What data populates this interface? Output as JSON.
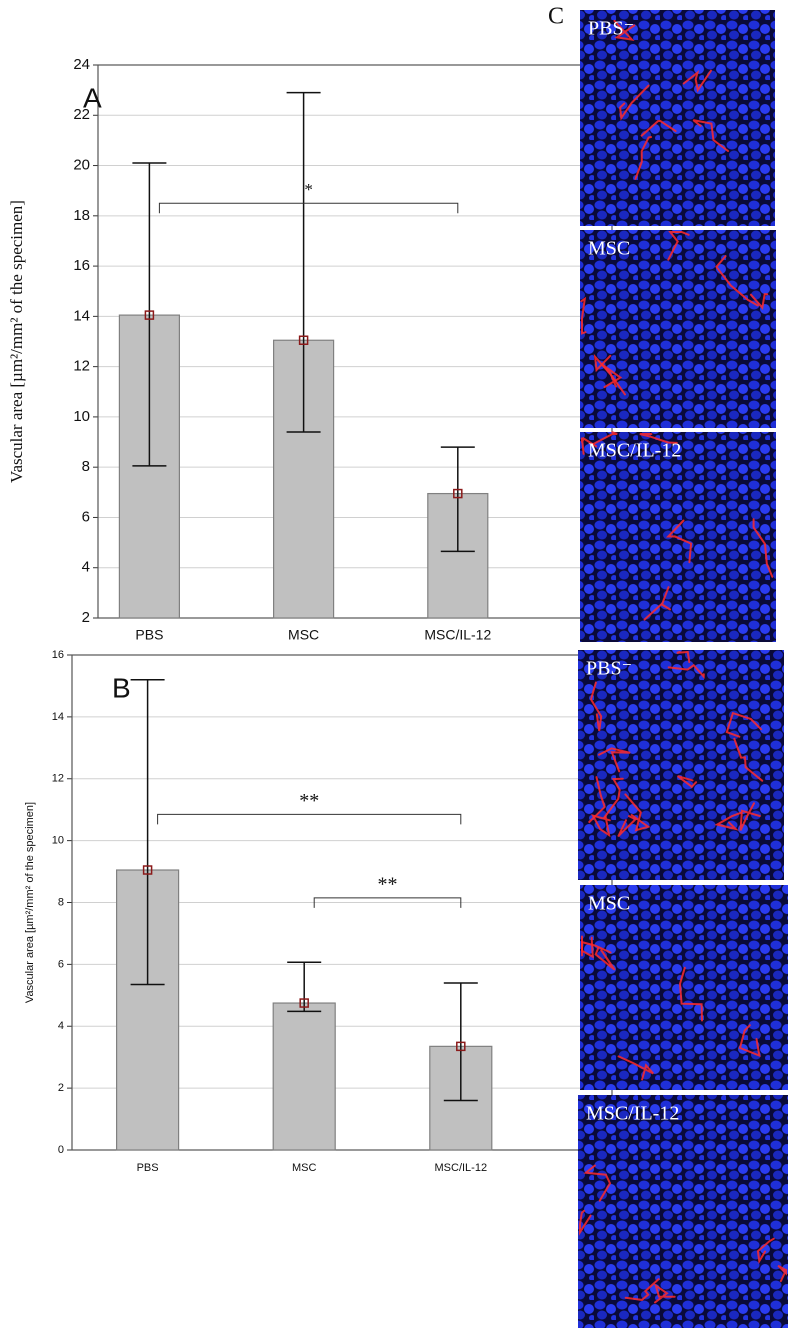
{
  "chart_data": [
    {
      "type": "bar",
      "panel": "A",
      "ylabel": "Vascular area [µm²/mm² of the specimen]",
      "categories": [
        "PBS",
        "MSC",
        "MSC/IL-12"
      ],
      "values": [
        14.05,
        13.05,
        6.95
      ],
      "lower": [
        8.05,
        9.4,
        4.65
      ],
      "upper": [
        20.1,
        22.9,
        8.8
      ],
      "color": "#c0c0c0",
      "marker_color": "#8b1a1a",
      "ylim": [
        2,
        24
      ],
      "yticks": [
        2,
        4,
        6,
        8,
        10,
        12,
        14,
        16,
        18,
        20,
        22,
        24
      ],
      "grid": true,
      "brackets": [
        {
          "from": 0,
          "to": 2,
          "y": 18.5,
          "label": "*"
        }
      ]
    },
    {
      "type": "bar",
      "panel": "B",
      "ylabel": "Vascular area [µm²/mm² of the specimen]",
      "categories": [
        "PBS",
        "MSC",
        "MSC/IL-12"
      ],
      "values": [
        9.05,
        4.75,
        3.35
      ],
      "lower": [
        5.35,
        4.48,
        1.6
      ],
      "upper": [
        15.2,
        6.07,
        5.4
      ],
      "color": "#c0c0c0",
      "marker_color": "#8b1a1a",
      "ylim": [
        0,
        16
      ],
      "yticks": [
        0,
        2,
        4,
        6,
        8,
        10,
        12,
        14,
        16
      ],
      "grid": true,
      "brackets": [
        {
          "from": 0,
          "to": 2,
          "y": 10.85,
          "label": "**"
        },
        {
          "from": 1,
          "to": 2,
          "y": 8.15,
          "label": "**"
        }
      ]
    }
  ],
  "panel_c": {
    "label": "C",
    "images": [
      {
        "label": "PBS⁻"
      },
      {
        "label": "MSC"
      },
      {
        "label": "MSC/IL-12"
      },
      {
        "label": "PBS⁻"
      },
      {
        "label": "MSC"
      },
      {
        "label": "MSC/IL-12"
      }
    ]
  }
}
